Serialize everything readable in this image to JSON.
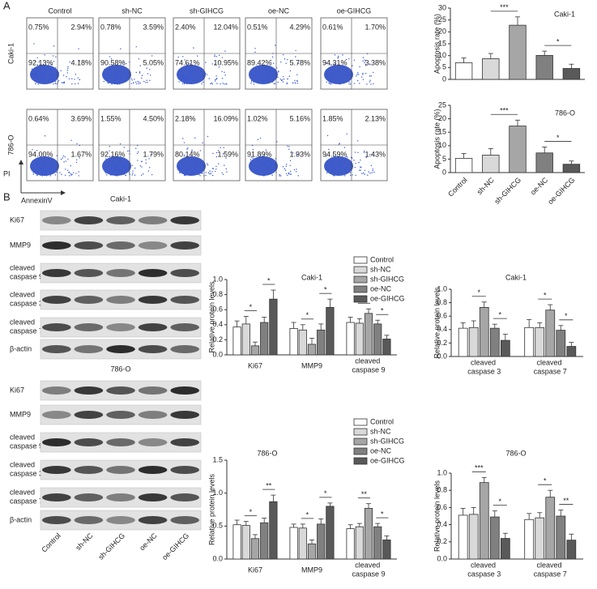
{
  "panel_labels": [
    "A",
    "B"
  ],
  "flow": {
    "conditions": [
      "Control",
      "sh-NC",
      "sh-GIHCG",
      "oe-NC",
      "oe-GIHCG"
    ],
    "y_label": "PI",
    "x_label": "AnnexinV",
    "rows": [
      {
        "cell": "Caki-1",
        "quadrants": [
          [
            "0.75%",
            "2.94%",
            "92.13%",
            "4.18%"
          ],
          [
            "0.78%",
            "3.59%",
            "90.58%",
            "5.05%"
          ],
          [
            "2.40%",
            "12.04%",
            "74.61%",
            "10.95%"
          ],
          [
            "0.51%",
            "4.29%",
            "89.42%",
            "5.78%"
          ],
          [
            "0.61%",
            "1.70%",
            "94.31%",
            "3.38%"
          ]
        ]
      },
      {
        "cell": "786-O",
        "quadrants": [
          [
            "0.64%",
            "3.69%",
            "94.00%",
            "1.67%"
          ],
          [
            "1.55%",
            "4.50%",
            "92.16%",
            "1.79%"
          ],
          [
            "2.18%",
            "16.09%",
            "80.14%",
            "1.59%"
          ],
          [
            "1.02%",
            "5.16%",
            "91.89%",
            "1.93%"
          ],
          [
            "1.85%",
            "2.13%",
            "94.59%",
            "1.43%"
          ]
        ]
      }
    ]
  },
  "blots": {
    "lanes": [
      "Control",
      "sh-NC",
      "sh-GIHCG",
      "oe-NC",
      "oe-GIHCG"
    ],
    "groups": [
      {
        "title": "Caki-1",
        "proteins": [
          "Ki67",
          "MMP9",
          "cleaved caspase 9",
          "cleaved caspase 3",
          "cleaved caspase 7",
          "β-actin"
        ]
      },
      {
        "title": "786-O",
        "proteins": [
          "Ki67",
          "MMP9",
          "cleaved caspase 9",
          "cleaved caspase 3",
          "cleaved caspase 7",
          "β-actin"
        ]
      }
    ]
  },
  "chart_data": [
    {
      "type": "bar",
      "title": "Caki-1",
      "y_label": "Apoptosis rate (%)",
      "categories": [
        null,
        null,
        null,
        null,
        null
      ],
      "values": [
        7,
        8.7,
        22.8,
        10.1,
        4.6
      ],
      "errors": [
        2,
        2.2,
        3.5,
        1.8,
        1.8
      ],
      "colors": [
        "#ffffff",
        "#d9d9d9",
        "#a6a6a6",
        "#808080",
        "#595959"
      ],
      "ylim": [
        0,
        30
      ],
      "yticks": [
        0,
        5,
        10,
        15,
        20,
        25,
        30
      ],
      "annotations": [
        {
          "from": 1,
          "to": 2,
          "label": "***"
        },
        {
          "from": 3,
          "to": 4,
          "label": "*"
        }
      ]
    },
    {
      "type": "bar",
      "title": "786-O",
      "y_label": "Apoptosis rate (%)",
      "categories": [
        "Control",
        "sh-NC",
        "sh-GIHCG",
        "oe-NC",
        "oe-GIHCG"
      ],
      "values": [
        5.3,
        6.5,
        17.3,
        7.3,
        3.1
      ],
      "errors": [
        1.8,
        2.4,
        2.2,
        2.2,
        1.2
      ],
      "colors": [
        "#ffffff",
        "#d9d9d9",
        "#a6a6a6",
        "#808080",
        "#595959"
      ],
      "ylim": [
        0,
        25
      ],
      "yticks": [
        0,
        5,
        10,
        15,
        20,
        25
      ],
      "annotations": [
        {
          "from": 1,
          "to": 2,
          "label": "***"
        },
        {
          "from": 3,
          "to": 4,
          "label": "*"
        }
      ]
    },
    {
      "type": "grouped_bar",
      "title": "Caki-1",
      "y_label": "Relative protein levels",
      "categories": [
        "Ki67",
        "MMP9",
        "cleaved caspase 9"
      ],
      "series": [
        {
          "name": "Control",
          "color": "#ffffff",
          "values": [
            0.37,
            0.35,
            0.43
          ],
          "errors": [
            0.08,
            0.08,
            0.07
          ]
        },
        {
          "name": "sh-NC",
          "color": "#d9d9d9",
          "values": [
            0.41,
            0.33,
            0.42
          ],
          "errors": [
            0.1,
            0.07,
            0.06
          ]
        },
        {
          "name": "sh-GIHCG",
          "color": "#a6a6a6",
          "values": [
            0.12,
            0.14,
            0.55
          ],
          "errors": [
            0.05,
            0.08,
            0.06
          ]
        },
        {
          "name": "oe-NC",
          "color": "#808080",
          "values": [
            0.43,
            0.33,
            0.41
          ],
          "errors": [
            0.07,
            0.08,
            0.05
          ]
        },
        {
          "name": "oe-GIHCG",
          "color": "#595959",
          "values": [
            0.74,
            0.63,
            0.21
          ],
          "errors": [
            0.12,
            0.11,
            0.05
          ]
        }
      ],
      "ylim": [
        0,
        1
      ],
      "yticks": [
        {
          "value": 0,
          "label": "0.0"
        },
        0.2,
        0.4,
        0.6,
        0.8,
        {
          "value": 1,
          "label": "1.0"
        }
      ],
      "annotations": [
        {
          "group": 0,
          "from": 1,
          "to": 2,
          "label": "*"
        },
        {
          "group": 0,
          "from": 3,
          "to": 4,
          "label": "*"
        },
        {
          "group": 1,
          "from": 1,
          "to": 2,
          "label": "*"
        },
        {
          "group": 1,
          "from": 3,
          "to": 4,
          "label": "*"
        },
        {
          "group": 2,
          "from": 1,
          "to": 2,
          "label": "*"
        },
        {
          "group": 2,
          "from": 3,
          "to": 4,
          "label": "*"
        }
      ]
    },
    {
      "type": "grouped_bar",
      "title": "Caki-1",
      "y_label": "Relative protein levels",
      "categories": [
        "cleaved caspase 3",
        "cleaved caspase 7"
      ],
      "series": [
        {
          "color": "#ffffff",
          "values": [
            0.42,
            0.43
          ],
          "errors": [
            0.08,
            0.12
          ]
        },
        {
          "color": "#d9d9d9",
          "values": [
            0.43,
            0.43
          ],
          "errors": [
            0.1,
            0.07
          ]
        },
        {
          "color": "#a6a6a6",
          "values": [
            0.73,
            0.69
          ],
          "errors": [
            0.08,
            0.08
          ]
        },
        {
          "color": "#808080",
          "values": [
            0.42,
            0.39
          ],
          "errors": [
            0.06,
            0.07
          ]
        },
        {
          "color": "#595959",
          "values": [
            0.24,
            0.15
          ],
          "errors": [
            0.09,
            0.06
          ]
        }
      ],
      "ylim": [
        0,
        1
      ],
      "yticks": [
        {
          "value": 0,
          "label": "0.0"
        },
        0.2,
        0.4,
        0.6,
        0.8,
        {
          "value": 1,
          "label": "1.0"
        }
      ],
      "annotations": [
        {
          "group": 0,
          "from": 1,
          "to": 2,
          "label": "*"
        },
        {
          "group": 0,
          "from": 3,
          "to": 4,
          "label": "*"
        },
        {
          "group": 1,
          "from": 1,
          "to": 2,
          "label": "*"
        },
        {
          "group": 1,
          "from": 3,
          "to": 4,
          "label": "*"
        }
      ]
    },
    {
      "type": "grouped_bar",
      "title": "786-O",
      "y_label": "Relative protein levels",
      "categories": [
        "Ki67",
        "MMP9",
        "cleaved caspase 9"
      ],
      "series": [
        {
          "name": "Control",
          "color": "#ffffff",
          "values": [
            0.52,
            0.48,
            0.46
          ],
          "errors": [
            0.07,
            0.05,
            0.06
          ]
        },
        {
          "name": "sh-NC",
          "color": "#d9d9d9",
          "values": [
            0.51,
            0.47,
            0.49
          ],
          "errors": [
            0.06,
            0.06,
            0.05
          ]
        },
        {
          "name": "sh-GIHCG",
          "color": "#a6a6a6",
          "values": [
            0.31,
            0.23,
            0.77
          ],
          "errors": [
            0.06,
            0.06,
            0.07
          ]
        },
        {
          "name": "oe-NC",
          "color": "#808080",
          "values": [
            0.55,
            0.53,
            0.49
          ],
          "errors": [
            0.07,
            0.08,
            0.05
          ]
        },
        {
          "name": "oe-GIHCG",
          "color": "#595959",
          "values": [
            0.87,
            0.8,
            0.29
          ],
          "errors": [
            0.1,
            0.05,
            0.06
          ]
        }
      ],
      "ylim": [
        0,
        1.5
      ],
      "yticks": [
        {
          "value": 0,
          "label": "0.0"
        },
        0.5,
        {
          "value": 1,
          "label": "1.0"
        },
        1.5
      ],
      "annotations": [
        {
          "group": 0,
          "from": 1,
          "to": 2,
          "label": "*"
        },
        {
          "group": 0,
          "from": 3,
          "to": 4,
          "label": "**"
        },
        {
          "group": 1,
          "from": 1,
          "to": 2,
          "label": "*"
        },
        {
          "group": 1,
          "from": 3,
          "to": 4,
          "label": "*"
        },
        {
          "group": 2,
          "from": 1,
          "to": 2,
          "label": "**"
        },
        {
          "group": 2,
          "from": 3,
          "to": 4,
          "label": "*"
        }
      ]
    },
    {
      "type": "grouped_bar",
      "title": "786-O",
      "y_label": "Relative protein levels",
      "categories": [
        "cleaved caspase 3",
        "cleaved caspase 7"
      ],
      "series": [
        {
          "color": "#ffffff",
          "values": [
            0.51,
            0.46
          ],
          "errors": [
            0.08,
            0.07
          ]
        },
        {
          "color": "#d9d9d9",
          "values": [
            0.52,
            0.48
          ],
          "errors": [
            0.08,
            0.06
          ]
        },
        {
          "color": "#a6a6a6",
          "values": [
            0.89,
            0.72
          ],
          "errors": [
            0.06,
            0.08
          ]
        },
        {
          "color": "#808080",
          "values": [
            0.49,
            0.5
          ],
          "errors": [
            0.07,
            0.07
          ]
        },
        {
          "color": "#595959",
          "values": [
            0.24,
            0.22
          ],
          "errors": [
            0.06,
            0.07
          ]
        }
      ],
      "ylim": [
        0,
        1
      ],
      "yticks": [
        {
          "value": 0,
          "label": "0.0"
        },
        0.2,
        0.4,
        0.6,
        0.8,
        {
          "value": 1,
          "label": "1.0"
        }
      ],
      "annotations": [
        {
          "group": 0,
          "from": 1,
          "to": 2,
          "label": "***"
        },
        {
          "group": 0,
          "from": 3,
          "to": 4,
          "label": "*"
        },
        {
          "group": 1,
          "from": 1,
          "to": 2,
          "label": "*"
        },
        {
          "group": 1,
          "from": 3,
          "to": 4,
          "label": "**"
        }
      ]
    }
  ]
}
